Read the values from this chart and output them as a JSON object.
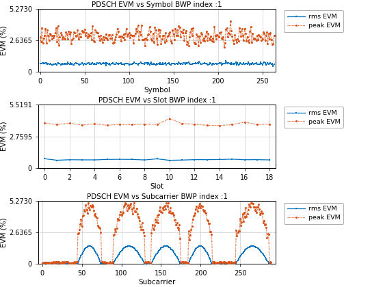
{
  "title1": "PDSCH EVM vs Symbol BWP index :1",
  "title2": "PDSCH EVM vs Slot BWP index :1",
  "title3": "PDSCH EVM vs Subcarrier BWP index :1",
  "xlabel1": "Symbol",
  "xlabel2": "Slot",
  "xlabel3": "Subcarrier",
  "ylabel": "EVM (%)",
  "ylim1": [
    0,
    5.273
  ],
  "ylim2": [
    0,
    5.5191
  ],
  "ylim3": [
    0,
    5.273
  ],
  "yticks1": [
    0,
    2.6365,
    5.273
  ],
  "yticks2": [
    0,
    2.7595,
    5.5191
  ],
  "yticks3": [
    0,
    2.6365,
    5.273
  ],
  "ytick_labels1": [
    "0",
    "2.6365",
    "5.2730"
  ],
  "ytick_labels2": [
    "0",
    "2.7595",
    "5.5191"
  ],
  "ytick_labels3": [
    "0",
    "2.6365",
    "5.2730"
  ],
  "xlim1": [
    -2,
    265
  ],
  "xlim2": [
    -0.5,
    18.5
  ],
  "xlim3": [
    -5,
    295
  ],
  "xticks1": [
    0,
    50,
    100,
    150,
    200,
    250
  ],
  "xticks2": [
    0,
    2,
    4,
    6,
    8,
    10,
    12,
    14,
    16,
    18
  ],
  "xticks3": [
    0,
    50,
    100,
    150,
    200,
    250
  ],
  "rms_color": "#0072BD",
  "peak_color": "#D95319",
  "background_color": "#ffffff",
  "grid_color": "#cccccc",
  "n_symbols": 264,
  "n_slots": 19,
  "n_subcarriers": 290,
  "seed": 42
}
